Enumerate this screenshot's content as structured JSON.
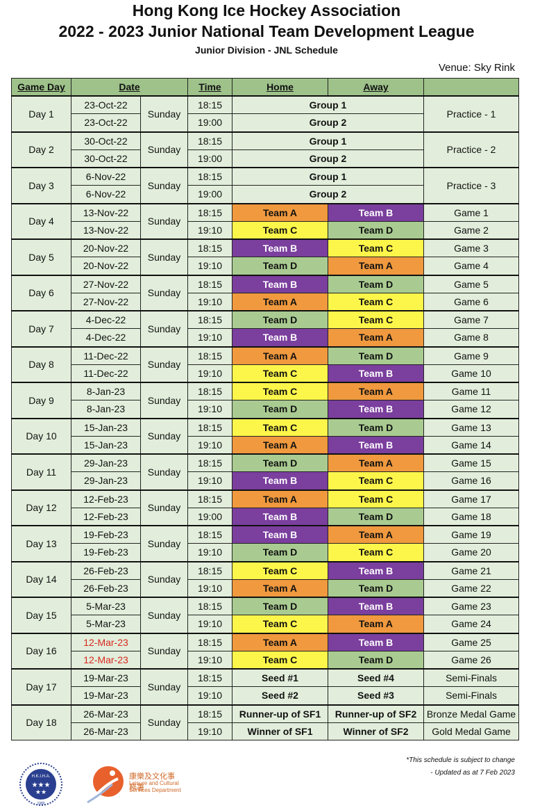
{
  "header": {
    "title_line1": "Hong Kong Ice Hockey Association",
    "title_line2": "2022 - 2023 Junior National Team Development League",
    "subtitle": "Junior Division - JNL Schedule",
    "venue": "Venue: Sky Rink"
  },
  "columns": {
    "game_day": "Game Day",
    "date": "Date",
    "time": "Time",
    "home": "Home",
    "away": "Away",
    "extra": ""
  },
  "team_colors": {
    "Team A": "#f0993e",
    "Team B": "#7b3f9e",
    "Team C": "#fdf64a",
    "Team D": "#a9cb91"
  },
  "days": [
    {
      "day": "Day 1",
      "weekday": "Sunday",
      "label": "Practice - 1",
      "games": [
        {
          "date": "23-Oct-22",
          "time": "18:15",
          "group": "Group 1"
        },
        {
          "date": "23-Oct-22",
          "time": "19:00",
          "group": "Group 2"
        }
      ]
    },
    {
      "day": "Day 2",
      "weekday": "Sunday",
      "label": "Practice - 2",
      "games": [
        {
          "date": "30-Oct-22",
          "time": "18:15",
          "group": "Group 1"
        },
        {
          "date": "30-Oct-22",
          "time": "19:00",
          "group": "Group 2"
        }
      ]
    },
    {
      "day": "Day 3",
      "weekday": "Sunday",
      "label": "Practice - 3",
      "games": [
        {
          "date": "6-Nov-22",
          "time": "18:15",
          "group": "Group 1"
        },
        {
          "date": "6-Nov-22",
          "time": "19:00",
          "group": "Group 2"
        }
      ]
    },
    {
      "day": "Day 4",
      "weekday": "Sunday",
      "games": [
        {
          "date": "13-Nov-22",
          "time": "18:15",
          "home": "Team A",
          "away": "Team B",
          "label": "Game 1"
        },
        {
          "date": "13-Nov-22",
          "time": "19:10",
          "home": "Team C",
          "away": "Team D",
          "label": "Game 2"
        }
      ]
    },
    {
      "day": "Day 5",
      "weekday": "Sunday",
      "games": [
        {
          "date": "20-Nov-22",
          "time": "18:15",
          "home": "Team B",
          "away": "Team C",
          "label": "Game 3"
        },
        {
          "date": "20-Nov-22",
          "time": "19:10",
          "home": "Team D",
          "away": "Team A",
          "label": "Game 4"
        }
      ]
    },
    {
      "day": "Day 6",
      "weekday": "Sunday",
      "games": [
        {
          "date": "27-Nov-22",
          "time": "18:15",
          "home": "Team B",
          "away": "Team D",
          "label": "Game 5"
        },
        {
          "date": "27-Nov-22",
          "time": "19:10",
          "home": "Team A",
          "away": "Team C",
          "label": "Game 6"
        }
      ]
    },
    {
      "day": "Day 7",
      "weekday": "Sunday",
      "games": [
        {
          "date": "4-Dec-22",
          "time": "18:15",
          "home": "Team D",
          "away": "Team C",
          "label": "Game 7"
        },
        {
          "date": "4-Dec-22",
          "time": "19:10",
          "home": "Team B",
          "away": "Team A",
          "label": "Game 8"
        }
      ]
    },
    {
      "day": "Day 8",
      "weekday": "Sunday",
      "games": [
        {
          "date": "11-Dec-22",
          "time": "18:15",
          "home": "Team A",
          "away": "Team D",
          "label": "Game 9"
        },
        {
          "date": "11-Dec-22",
          "time": "19:10",
          "home": "Team C",
          "away": "Team B",
          "label": "Game 10"
        }
      ]
    },
    {
      "day": "Day 9",
      "weekday": "Sunday",
      "games": [
        {
          "date": "8-Jan-23",
          "time": "18:15",
          "home": "Team C",
          "away": "Team A",
          "label": "Game 11"
        },
        {
          "date": "8-Jan-23",
          "time": "19:10",
          "home": "Team D",
          "away": "Team B",
          "label": "Game 12"
        }
      ]
    },
    {
      "day": "Day 10",
      "weekday": "Sunday",
      "games": [
        {
          "date": "15-Jan-23",
          "time": "18:15",
          "home": "Team C",
          "away": "Team D",
          "label": "Game 13"
        },
        {
          "date": "15-Jan-23",
          "time": "19:10",
          "home": "Team A",
          "away": "Team B",
          "label": "Game 14"
        }
      ]
    },
    {
      "day": "Day 11",
      "weekday": "Sunday",
      "games": [
        {
          "date": "29-Jan-23",
          "time": "18:15",
          "home": "Team D",
          "away": "Team A",
          "label": "Game 15"
        },
        {
          "date": "29-Jan-23",
          "time": "19:10",
          "home": "Team B",
          "away": "Team C",
          "label": "Game 16"
        }
      ]
    },
    {
      "day": "Day 12",
      "weekday": "Sunday",
      "games": [
        {
          "date": "12-Feb-23",
          "time": "18:15",
          "home": "Team A",
          "away": "Team C",
          "label": "Game 17"
        },
        {
          "date": "12-Feb-23",
          "time": "19:00",
          "home": "Team B",
          "away": "Team D",
          "label": "Game 18"
        }
      ]
    },
    {
      "day": "Day 13",
      "weekday": "Sunday",
      "games": [
        {
          "date": "19-Feb-23",
          "time": "18:15",
          "home": "Team B",
          "away": "Team A",
          "label": "Game 19"
        },
        {
          "date": "19-Feb-23",
          "time": "19:10",
          "home": "Team D",
          "away": "Team C",
          "label": "Game 20"
        }
      ]
    },
    {
      "day": "Day 14",
      "weekday": "Sunday",
      "games": [
        {
          "date": "26-Feb-23",
          "time": "18:15",
          "home": "Team C",
          "away": "Team B",
          "label": "Game 21"
        },
        {
          "date": "26-Feb-23",
          "time": "19:10",
          "home": "Team A",
          "away": "Team D",
          "label": "Game 22"
        }
      ]
    },
    {
      "day": "Day 15",
      "weekday": "Sunday",
      "games": [
        {
          "date": "5-Mar-23",
          "time": "18:15",
          "home": "Team D",
          "away": "Team B",
          "label": "Game 23"
        },
        {
          "date": "5-Mar-23",
          "time": "19:10",
          "home": "Team C",
          "away": "Team A",
          "label": "Game 24"
        }
      ]
    },
    {
      "day": "Day 16",
      "weekday": "Sunday",
      "date_color": "#d8281f",
      "games": [
        {
          "date": "12-Mar-23",
          "time": "18:15",
          "home": "Team A",
          "away": "Team B",
          "label": "Game 25"
        },
        {
          "date": "12-Mar-23",
          "time": "19:10",
          "home": "Team C",
          "away": "Team D",
          "label": "Game 26"
        }
      ]
    },
    {
      "day": "Day 17",
      "weekday": "Sunday",
      "games": [
        {
          "date": "19-Mar-23",
          "time": "18:15",
          "home": "Seed #1",
          "away": "Seed #4",
          "label": "Semi-Finals"
        },
        {
          "date": "19-Mar-23",
          "time": "19:10",
          "home": "Seed #2",
          "away": "Seed #3",
          "label": "Semi-Finals"
        }
      ]
    },
    {
      "day": "Day 18",
      "weekday": "Sunday",
      "games": [
        {
          "date": "26-Mar-23",
          "time": "18:15",
          "home": "Runner-up of SF1",
          "away": "Runner-up of SF2",
          "label": "Bronze Medal Game"
        },
        {
          "date": "26-Mar-23",
          "time": "19:10",
          "home": "Winner of SF1",
          "away": "Winner of SF2",
          "label": "Gold Medal Game"
        }
      ]
    }
  ],
  "footer": {
    "note1": "*This schedule is subject to change",
    "note2": "-   Updated as at 7 Feb 2023",
    "logo1_text": "H.K.I.H.A.",
    "logo1_year": "1980",
    "logo2_zh": "康樂及文化事務署",
    "logo2_en": "Leisure and Cultural Services Department"
  }
}
